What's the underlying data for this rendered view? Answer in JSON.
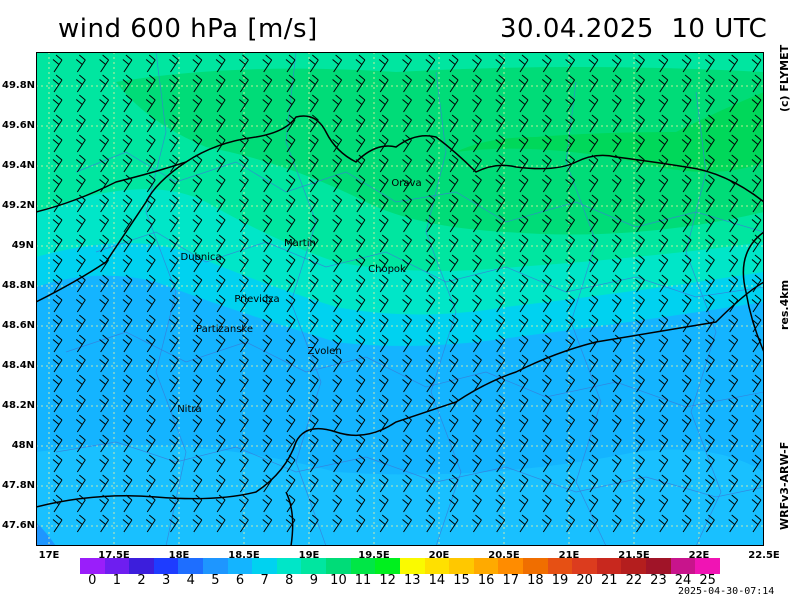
{
  "header": {
    "title": "wind 600 hPa [m/s]",
    "datetime": "30.04.2025  10 UTC"
  },
  "side_labels": {
    "copyright": "(c) FLYMET",
    "resolution": "res.4km",
    "model": "WRFv3-ARW-F"
  },
  "map": {
    "lon_range": [
      16.9,
      22.5
    ],
    "lat_range": [
      47.5,
      49.97
    ],
    "lat_ticks": [
      "49.8N",
      "49.6N",
      "49.4N",
      "49.2N",
      "49N",
      "48.8N",
      "48.6N",
      "48.4N",
      "48.2N",
      "48N",
      "47.8N",
      "47.6N"
    ],
    "lat_values": [
      49.8,
      49.6,
      49.4,
      49.2,
      49.0,
      48.8,
      48.6,
      48.4,
      48.2,
      48.0,
      47.8,
      47.6
    ],
    "lon_ticks": [
      "17E",
      "17.5E",
      "18E",
      "18.5E",
      "19E",
      "19.5E",
      "20E",
      "20.5E",
      "21E",
      "21.5E",
      "22E",
      "22.5E"
    ],
    "lon_values": [
      17.0,
      17.5,
      18.0,
      18.5,
      19.0,
      19.5,
      20.0,
      20.5,
      21.0,
      21.5,
      22.0,
      22.5
    ],
    "cities": [
      {
        "name": "Orava",
        "lon": 19.75,
        "lat": 49.3
      },
      {
        "name": "Martin",
        "lon": 18.93,
        "lat": 49.0
      },
      {
        "name": "Dubnica",
        "lon": 18.17,
        "lat": 48.93
      },
      {
        "name": "Chopok",
        "lon": 19.6,
        "lat": 48.87
      },
      {
        "name": "Prievidza",
        "lon": 18.6,
        "lat": 48.72
      },
      {
        "name": "Partizanske",
        "lon": 18.35,
        "lat": 48.57
      },
      {
        "name": "Zvolen",
        "lon": 19.12,
        "lat": 48.46
      },
      {
        "name": "Nitra",
        "lon": 18.08,
        "lat": 48.17
      }
    ],
    "wind_direction": "west-northwest, ~10-12 m/s"
  },
  "colorbar": {
    "labels": [
      "0",
      "1",
      "2",
      "3",
      "4",
      "5",
      "6",
      "7",
      "8",
      "9",
      "10",
      "11",
      "12",
      "13",
      "14",
      "15",
      "16",
      "17",
      "18",
      "19",
      "20",
      "21",
      "22",
      "23",
      "24",
      "25"
    ],
    "colors": [
      "#9a1efa",
      "#6e1ef0",
      "#3c1edc",
      "#1e3cff",
      "#1e6eff",
      "#1e96ff",
      "#14b4ff",
      "#00d2f0",
      "#00e6c8",
      "#00e6a0",
      "#00dc78",
      "#00e646",
      "#00f01e",
      "#fafa00",
      "#ffe000",
      "#ffc800",
      "#ffaa00",
      "#ff8c00",
      "#f06e00",
      "#e65014",
      "#dc3c1e",
      "#c8281e",
      "#b41e1e",
      "#a01428",
      "#c8148c",
      "#f014b4"
    ]
  },
  "timestamp": "2025-04-30-07:14"
}
